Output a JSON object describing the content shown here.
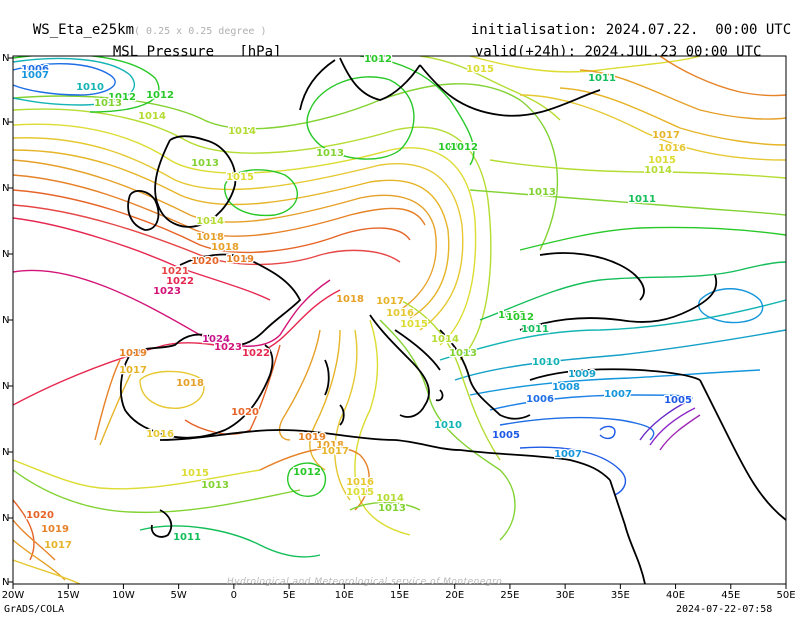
{
  "header": {
    "model": "WS_Eta_e25km",
    "resolution": "( 0.25 x 0.25 degree )",
    "field": "MSL Pressure",
    "unit": "[hPa]",
    "init_label": "initialisation:",
    "init_value": "2024.07.22.  00:00 UTC",
    "valid_label": "valid(+24h):",
    "valid_value": "2024.JUL.23 00:00 UTC"
  },
  "footer": {
    "software": "GrADS/COLA",
    "timestamp": "2024-07-22-07:58",
    "credit": "Hydrological and Meteorological service of Montenegro"
  },
  "map": {
    "lon_labels": [
      "20W",
      "15W",
      "10W",
      "5W",
      "0",
      "5E",
      "10E",
      "15E",
      "20E",
      "25E",
      "30E",
      "35E",
      "40E",
      "45E",
      "50E"
    ],
    "lat_labels": [
      "N",
      "N",
      "N",
      "N",
      "N",
      "N",
      "N",
      "N",
      "N"
    ],
    "contour_labels": [
      {
        "text": "1006",
        "color": "#1e6ee6"
      },
      {
        "text": "1007",
        "color": "#1496dc"
      },
      {
        "text": "1010",
        "color": "#14b4b4"
      },
      {
        "text": "1012",
        "color": "#28c828"
      },
      {
        "text": "1013",
        "color": "#82d232"
      },
      {
        "text": "1014",
        "color": "#b4dc32"
      },
      {
        "text": "1012",
        "color": "#28c828"
      },
      {
        "text": "1015",
        "color": "#dcdc32"
      },
      {
        "text": "1012",
        "color": "#28c828"
      },
      {
        "text": "1013",
        "color": "#82d232"
      },
      {
        "text": "1014",
        "color": "#b4dc32"
      },
      {
        "text": "1013",
        "color": "#82d232"
      },
      {
        "text": "1012",
        "color": "#28c828"
      },
      {
        "text": "1014",
        "color": "#b4dc32"
      },
      {
        "text": "1018",
        "color": "#e6a028"
      },
      {
        "text": "1019",
        "color": "#e68228"
      },
      {
        "text": "1018",
        "color": "#e6a028"
      },
      {
        "text": "1020",
        "color": "#e66428"
      },
      {
        "text": "1021",
        "color": "#e64646"
      },
      {
        "text": "1022",
        "color": "#e62850"
      },
      {
        "text": "1023",
        "color": "#d21478"
      },
      {
        "text": "1018",
        "color": "#e6a028"
      },
      {
        "text": "1017",
        "color": "#e6b428"
      },
      {
        "text": "1016",
        "color": "#e6c832"
      },
      {
        "text": "1015",
        "color": "#dcdc32"
      },
      {
        "text": "1014",
        "color": "#b4dc32"
      },
      {
        "text": "1013",
        "color": "#82d232"
      },
      {
        "text": "1012",
        "color": "#28c828"
      },
      {
        "text": "1011",
        "color": "#14be5a"
      },
      {
        "text": "1024",
        "color": "#c8148c"
      },
      {
        "text": "1023",
        "color": "#d21478"
      },
      {
        "text": "1022",
        "color": "#e62850"
      },
      {
        "text": "1019",
        "color": "#e68228"
      },
      {
        "text": "1017",
        "color": "#e6b428"
      },
      {
        "text": "1018",
        "color": "#e6a028"
      },
      {
        "text": "1020",
        "color": "#e66428"
      },
      {
        "text": "1016",
        "color": "#e6c832"
      },
      {
        "text": "1019",
        "color": "#e68228"
      },
      {
        "text": "1018",
        "color": "#e6a028"
      },
      {
        "text": "1017",
        "color": "#e6b428"
      },
      {
        "text": "1015",
        "color": "#dcdc32"
      },
      {
        "text": "1013",
        "color": "#82d232"
      },
      {
        "text": "1012",
        "color": "#28c828"
      },
      {
        "text": "1016",
        "color": "#e6c832"
      },
      {
        "text": "1015",
        "color": "#dcdc32"
      },
      {
        "text": "1014",
        "color": "#b4dc32"
      },
      {
        "text": "1013",
        "color": "#82d232"
      },
      {
        "text": "1011",
        "color": "#14be5a"
      },
      {
        "text": "1020",
        "color": "#e66428"
      },
      {
        "text": "1019",
        "color": "#e68228"
      },
      {
        "text": "1017",
        "color": "#e6b428"
      },
      {
        "text": "1010",
        "color": "#14b4b4"
      },
      {
        "text": "1009",
        "color": "#14a0c8"
      },
      {
        "text": "1008",
        "color": "#1496dc"
      },
      {
        "text": "1006",
        "color": "#1e6ee6"
      },
      {
        "text": "1007",
        "color": "#1496dc"
      },
      {
        "text": "1005",
        "color": "#1e5ae6"
      },
      {
        "text": "1007",
        "color": "#1496dc"
      },
      {
        "text": "1005",
        "color": "#1e5ae6"
      },
      {
        "text": "1010",
        "color": "#14b4b4"
      },
      {
        "text": "1011",
        "color": "#14be5a"
      },
      {
        "text": "1012",
        "color": "#28c828"
      },
      {
        "text": "1011",
        "color": "#14be5a"
      },
      {
        "text": "1013",
        "color": "#82d232"
      },
      {
        "text": "1018",
        "color": "#e6a028"
      },
      {
        "text": "1017",
        "color": "#e6b428"
      },
      {
        "text": "1016",
        "color": "#e6c832"
      },
      {
        "text": "1015",
        "color": "#dcdc32"
      },
      {
        "text": "1014",
        "color": "#b4dc32"
      },
      {
        "text": "1013",
        "color": "#82d232"
      },
      {
        "text": "1012",
        "color": "#28c828"
      },
      {
        "text": "1015",
        "color": "#dcdc32"
      }
    ]
  }
}
